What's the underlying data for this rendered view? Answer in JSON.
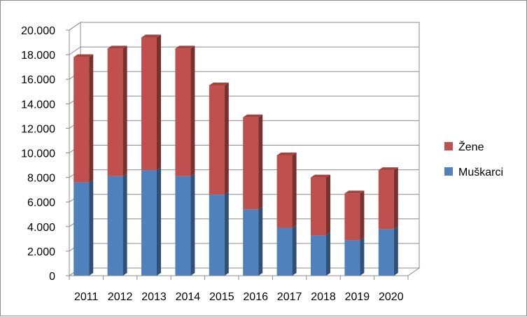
{
  "chart_data": {
    "type": "bar",
    "stacked": true,
    "three_d": true,
    "categories": [
      "2011",
      "2012",
      "2013",
      "2014",
      "2015",
      "2016",
      "2017",
      "2018",
      "2019",
      "2020"
    ],
    "series": [
      {
        "name": "Muškarci",
        "color": "#4f81bd",
        "values": [
          7600,
          8100,
          8600,
          8100,
          6600,
          5400,
          3900,
          3300,
          2900,
          3800
        ]
      },
      {
        "name": "Žene",
        "color": "#c0504d",
        "values": [
          10200,
          10400,
          10800,
          10400,
          8900,
          7500,
          5900,
          4700,
          3800,
          4800
        ]
      }
    ],
    "ylim": [
      0,
      20000
    ],
    "yticks": [
      "0",
      "2.000",
      "4.000",
      "6.000",
      "8.000",
      "10.000",
      "12.000",
      "14.000",
      "16.000",
      "18.000",
      "20.000"
    ],
    "grid": true,
    "legend_position": "right",
    "title": "",
    "xlabel": "",
    "ylabel": ""
  }
}
